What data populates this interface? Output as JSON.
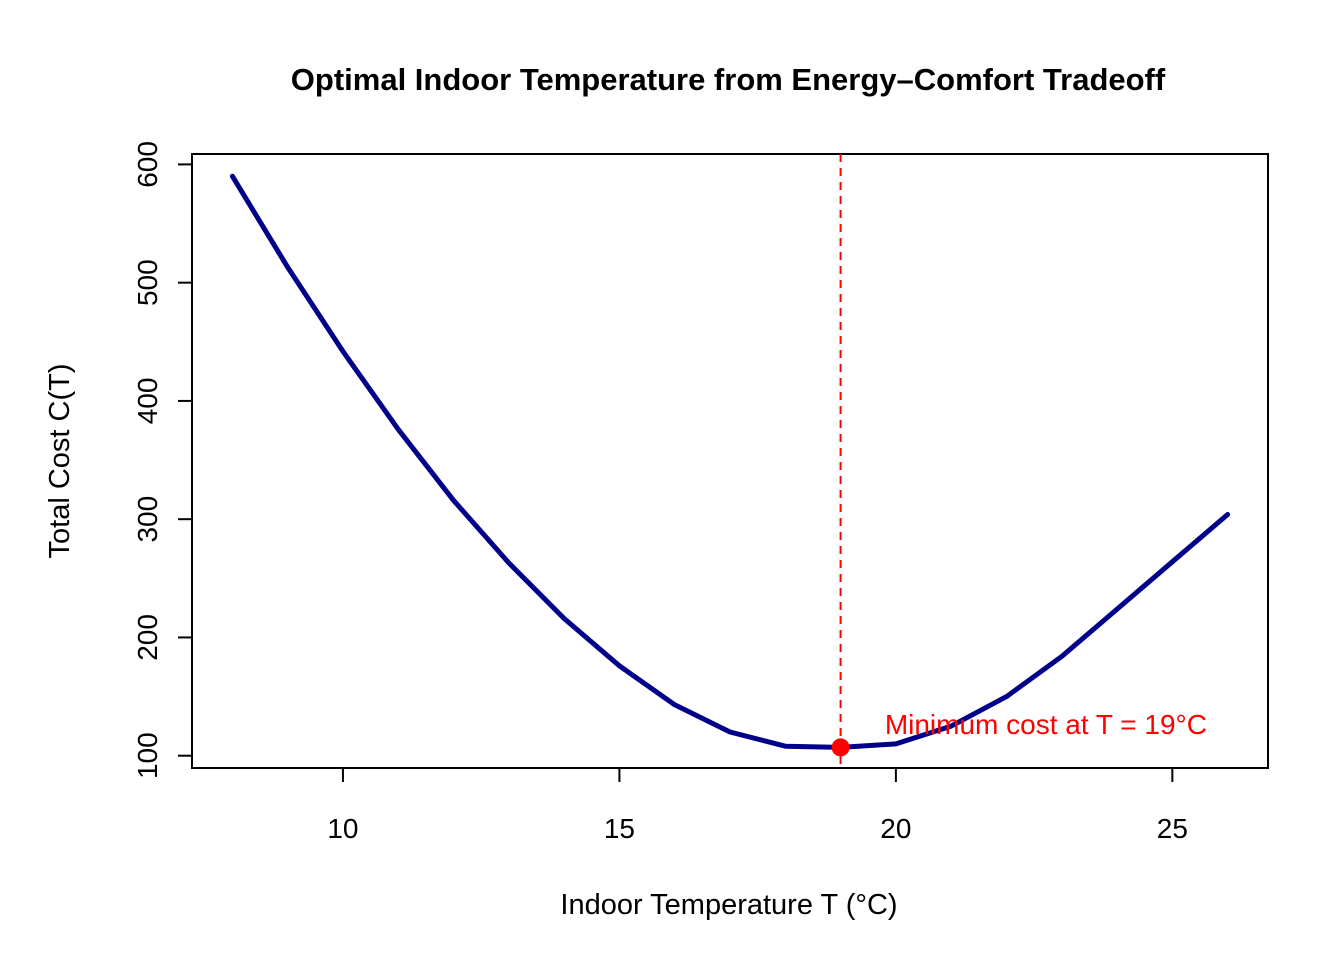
{
  "chart_data": {
    "type": "line",
    "title": "Optimal Indoor Temperature from Energy–Comfort Tradeoff",
    "xlabel": "Indoor Temperature T (°C)",
    "ylabel": "Total Cost C(T)",
    "xlim": [
      7.27,
      26.73
    ],
    "ylim": [
      89.6,
      608.8
    ],
    "xticks": [
      10,
      15,
      20,
      25
    ],
    "yticks": [
      100,
      200,
      300,
      400,
      500,
      600
    ],
    "grid": false,
    "series": [
      {
        "color": "#00008B",
        "x": [
          8,
          9,
          10,
          11,
          12,
          13,
          14,
          15,
          16,
          17,
          18,
          19,
          20,
          21,
          22,
          23,
          24,
          25,
          26
        ],
        "y": [
          590,
          513,
          442,
          376,
          316,
          263,
          216,
          176,
          143,
          120,
          108,
          107,
          110,
          125,
          150,
          184,
          224,
          264,
          304
        ]
      }
    ],
    "optimum": {
      "x": 19,
      "y": 107,
      "color": "#FF0000"
    },
    "vline": {
      "x": 19,
      "color": "#FF0000",
      "style": "dashed"
    },
    "annotation": {
      "text": "Minimum cost at T = 19°C",
      "x": 19.8,
      "y": 127,
      "color": "#FF0000"
    }
  }
}
